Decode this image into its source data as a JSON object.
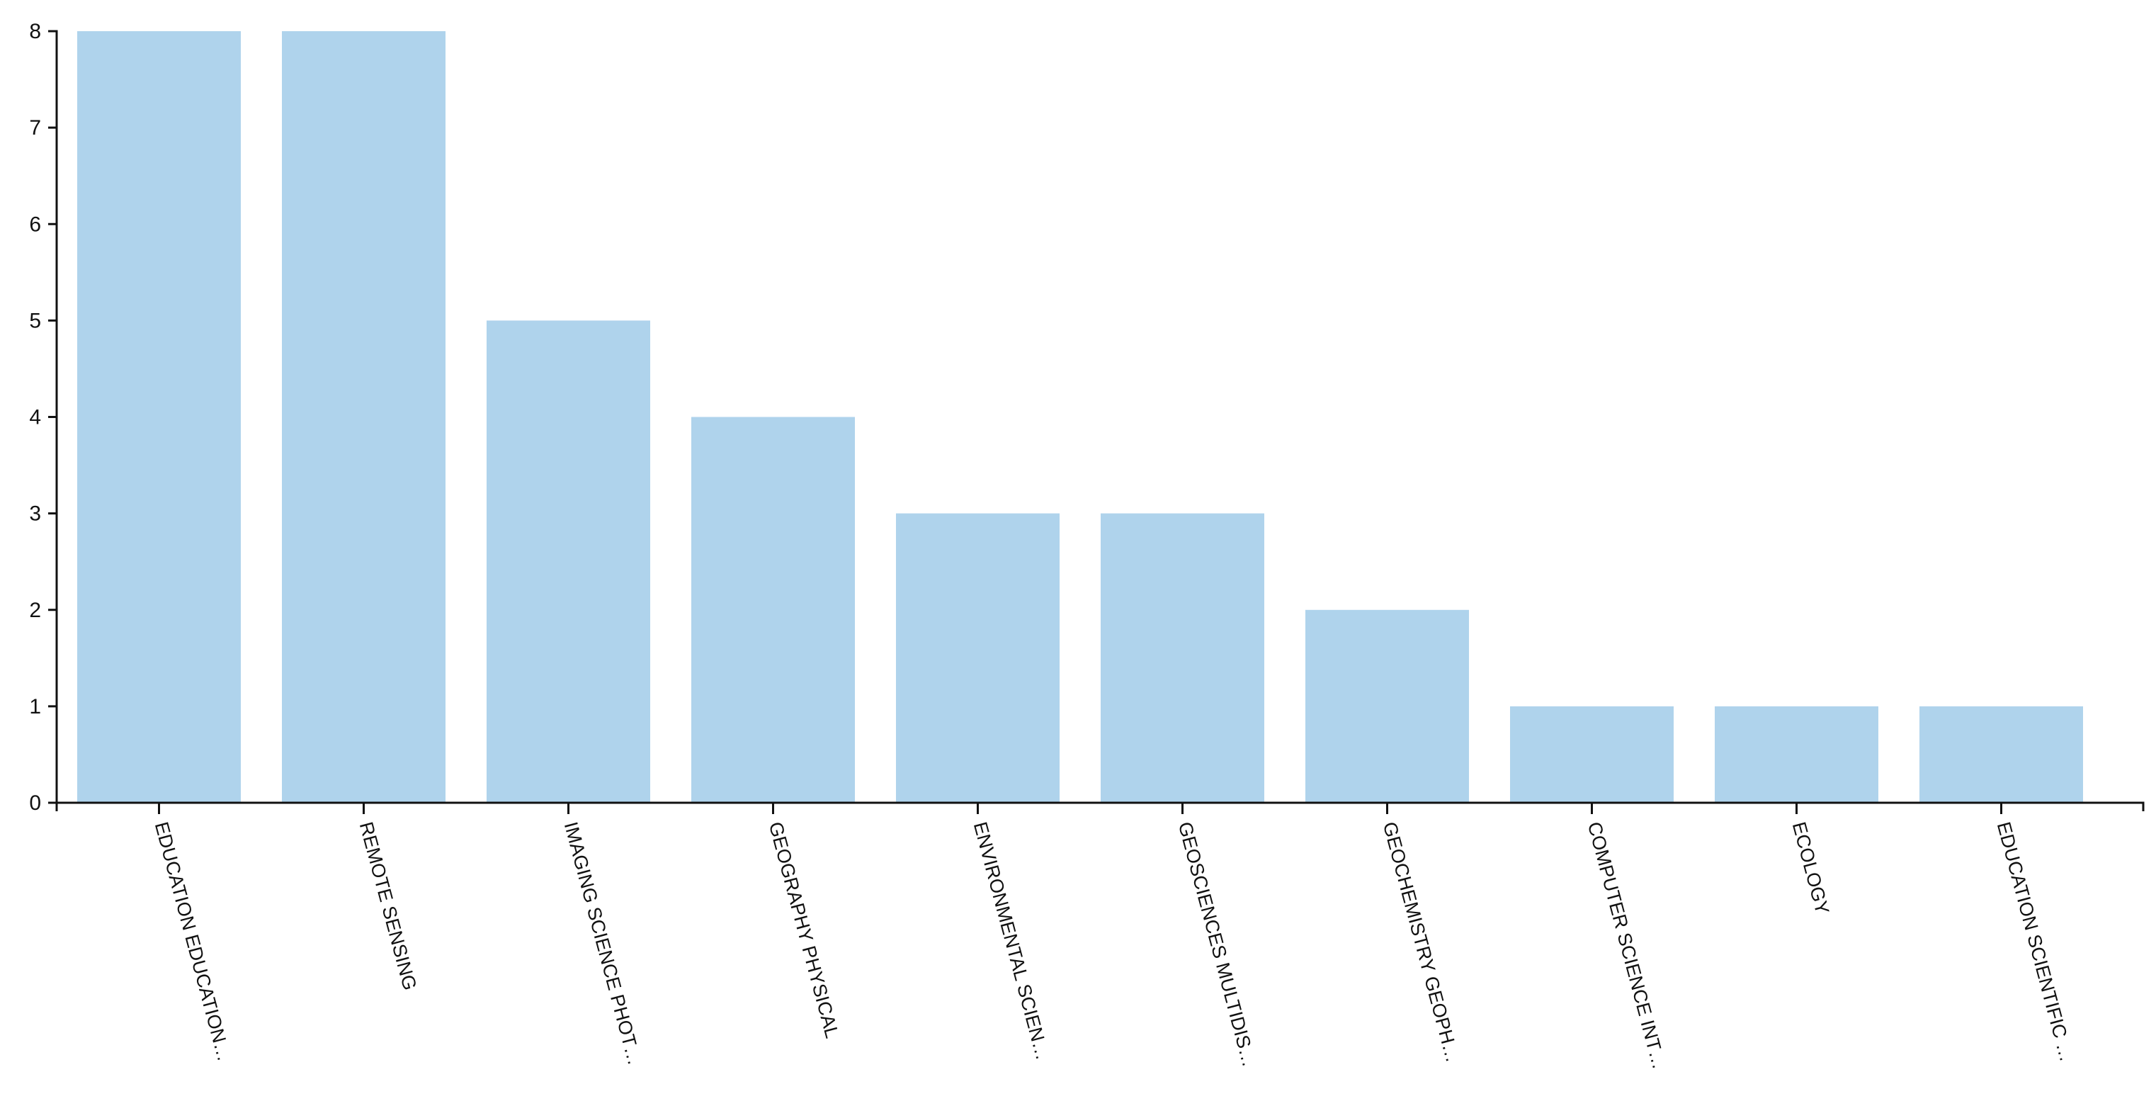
{
  "chart_data": {
    "type": "bar",
    "categories": [
      "EDUCATION EDUCATION…",
      "REMOTE SENSING",
      "IMAGING SCIENCE PHOT…",
      "GEOGRAPHY PHYSICAL",
      "ENVIRONMENTAL SCIEN…",
      "GEOSCIENCES MULTIDIS…",
      "GEOCHEMISTRY GEOPH…",
      "COMPUTER SCIENCE INT…",
      "ECOLOGY",
      "EDUCATION SCIENTIFIC …"
    ],
    "values": [
      8,
      8,
      5,
      4,
      3,
      3,
      2,
      1,
      1,
      1
    ],
    "yticks": [
      "0",
      "1",
      "2",
      "3",
      "4",
      "5",
      "6",
      "7",
      "8"
    ],
    "ylim": [
      0,
      8
    ],
    "grid": false,
    "bar_color": "#afd3ec",
    "axis_color": "#111111"
  }
}
